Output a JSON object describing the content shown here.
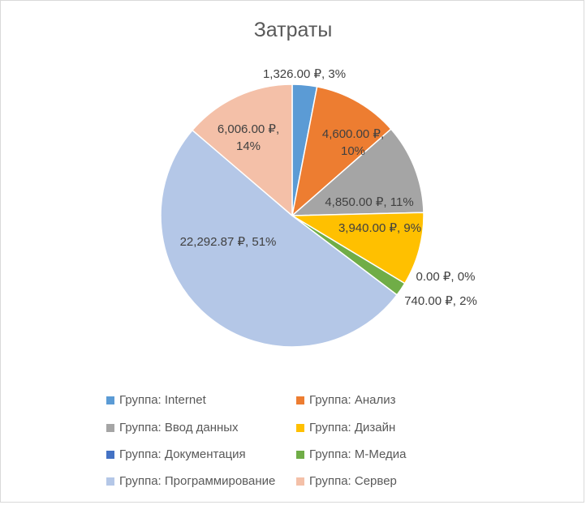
{
  "chart_data": {
    "type": "pie",
    "title": "Затраты",
    "currency_symbol": "₽",
    "series": [
      {
        "name": "Группа: Internet",
        "value": 1326.0,
        "label": "1,326.00 ₽, 3%",
        "color": "#5b9bd5"
      },
      {
        "name": "Группа: Анализ",
        "value": 4600.0,
        "label": "4,600.00 ₽, 10%",
        "color": "#ed7d31"
      },
      {
        "name": "Группа: Ввод данных",
        "value": 4850.0,
        "label": "4,850.00 ₽, 11%",
        "color": "#a5a5a5"
      },
      {
        "name": "Группа: Дизайн",
        "value": 3940.0,
        "label": "3,940.00 ₽, 9%",
        "color": "#ffc000"
      },
      {
        "name": "Группа: Документация",
        "value": 0.0,
        "label": "0.00 ₽, 0%",
        "color": "#4472c4"
      },
      {
        "name": "Группа: М-Медиа",
        "value": 740.0,
        "label": "740.00 ₽, 2%",
        "color": "#70ad47"
      },
      {
        "name": "Группа: Программирование",
        "value": 22292.87,
        "label": "22,292.87 ₽, 51%",
        "color": "#b4c7e7"
      },
      {
        "name": "Группа: Сервер",
        "value": 6006.0,
        "label": "6,006.00 ₽, 14%",
        "color": "#f4c0a8"
      }
    ],
    "legend_position": "bottom"
  }
}
